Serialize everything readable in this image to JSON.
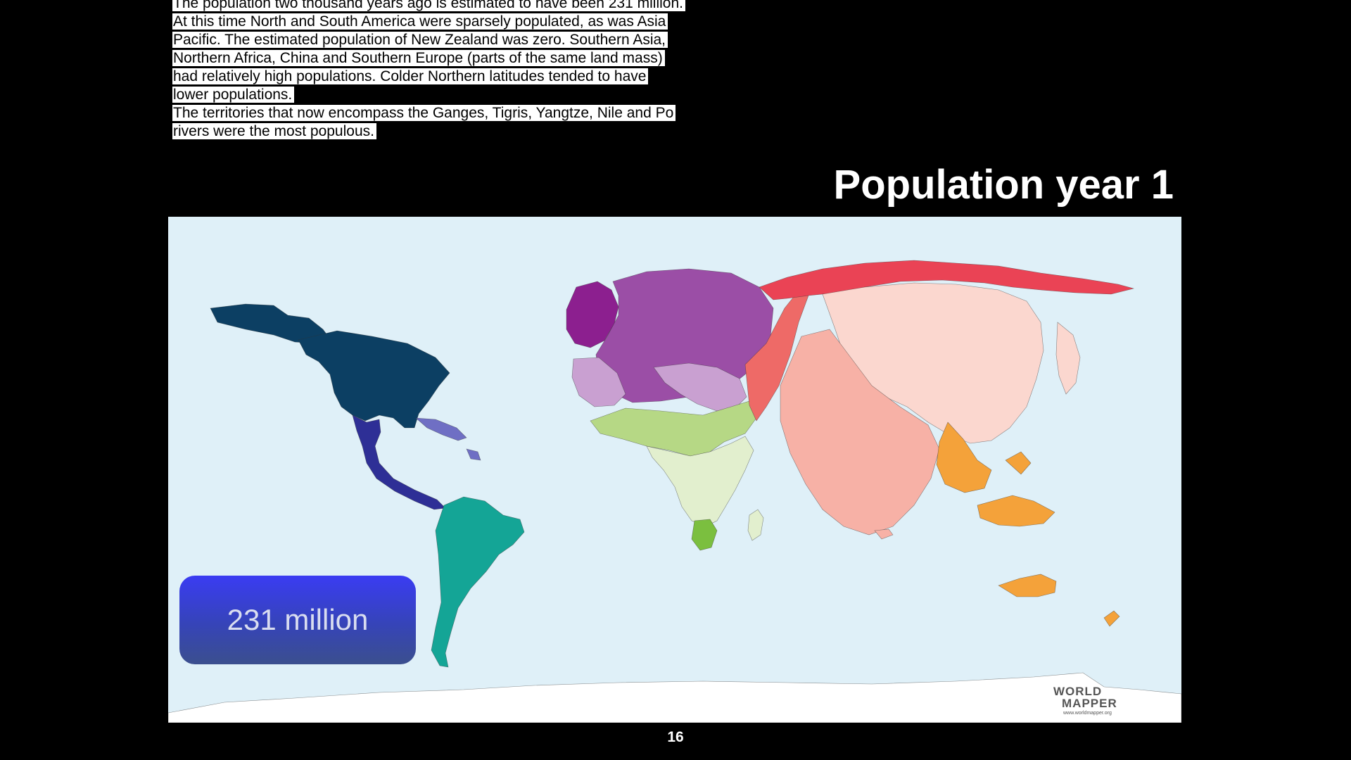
{
  "notes": {
    "lines": [
      "The population two thousand years ago is estimated to have been 231 million.",
      "At this time North and South America were sparsely populated, as was Asia",
      "Pacific. The estimated population of New Zealand was zero. Southern Asia,",
      "Northern Africa, China and Southern Europe (parts of the same land mass)",
      "had relatively high populations. Colder Northern latitudes tended to have",
      "lower populations.",
      "The territories that now encompass the Ganges, Tigris, Yangtze, Nile and Po",
      "rivers were the most populous."
    ]
  },
  "slide": {
    "title": "Population year 1",
    "page_number": "16"
  },
  "map": {
    "badge_text": "231 million",
    "logo": {
      "line1": "WORLD",
      "line2": "MAPPER",
      "url": "www.worldmapper.org"
    },
    "colors": {
      "ocean": "#dff0f8",
      "north_america": "#0c3f63",
      "central_america": "#2e2f96",
      "caribbean": "#6f6fc4",
      "south_america": "#14a596",
      "europe": "#9b4ea6",
      "western_europe": "#8c1f8f",
      "north_africa_middle_east_light": "#c9a0d1",
      "north_africa": "#b6d885",
      "sub_saharan_africa": "#e2efce",
      "southern_africa": "#7bbf3f",
      "middle_east": "#ee6a67",
      "russia_north_asia": "#ea4355",
      "south_asia": "#f7b1a6",
      "east_asia": "#fbd7cf",
      "south_east_asia": "#f4a23a",
      "antarctica": "#ffffff"
    }
  }
}
